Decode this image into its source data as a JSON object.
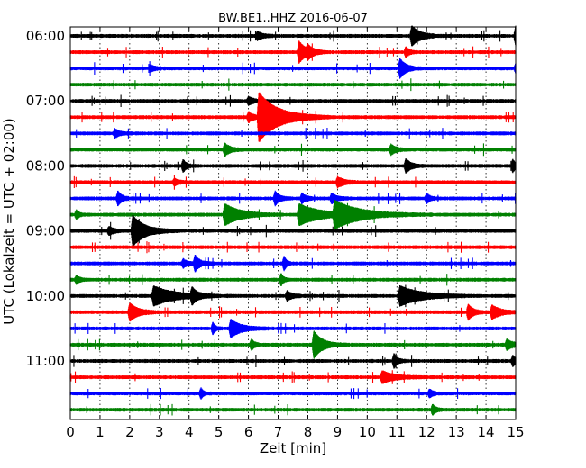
{
  "chart_data": {
    "type": "line",
    "title": "BW.BE1..HHZ 2016-06-07",
    "xlabel": "Zeit  [min]",
    "ylabel": "UTC (Lokalzeit = UTC + 02:00)",
    "xlim": [
      0,
      15
    ],
    "x_ticks": [
      "0",
      "1",
      "2",
      "3",
      "4",
      "5",
      "6",
      "7",
      "8",
      "9",
      "10",
      "11",
      "12",
      "13",
      "14",
      "15"
    ],
    "y_tick_labels": [
      "06:00",
      "07:00",
      "08:00",
      "09:00",
      "10:00",
      "11:00"
    ],
    "grid": true,
    "trace_interval_minutes": 15,
    "color_cycle": [
      "#000000",
      "#ff0000",
      "#0000ff",
      "#008000"
    ],
    "traces": [
      {
        "start": "06:00",
        "color": "#000000",
        "events": [
          [
            6.3,
            0.3,
            4
          ],
          [
            11.5,
            0.5,
            10
          ],
          [
            15,
            0.6,
            10
          ]
        ]
      },
      {
        "start": "06:15",
        "color": "#ff0000",
        "events": [
          [
            7.7,
            0.45,
            11
          ],
          [
            8.0,
            0.25,
            5
          ],
          [
            11.3,
            0.2,
            5
          ]
        ]
      },
      {
        "start": "06:30",
        "color": "#0000ff",
        "events": [
          [
            2.7,
            0.3,
            3
          ],
          [
            11.1,
            0.35,
            10
          ],
          [
            15,
            0.2,
            4
          ]
        ]
      },
      {
        "start": "06:45",
        "color": "#008000",
        "events": []
      },
      {
        "start": "07:00",
        "color": "#000000",
        "events": [
          [
            6.0,
            0.3,
            4
          ]
        ]
      },
      {
        "start": "07:15",
        "color": "#ff0000",
        "events": [
          [
            6.35,
            1.1,
            26
          ],
          [
            6.0,
            0.3,
            5
          ]
        ]
      },
      {
        "start": "07:30",
        "color": "#0000ff",
        "events": [
          [
            1.5,
            0.3,
            4
          ]
        ]
      },
      {
        "start": "07:45",
        "color": "#008000",
        "events": [
          [
            5.2,
            0.35,
            6
          ],
          [
            10.8,
            0.3,
            5
          ]
        ]
      },
      {
        "start": "08:00",
        "color": "#000000",
        "events": [
          [
            3.8,
            0.2,
            6
          ],
          [
            11.3,
            0.3,
            7
          ],
          [
            14.9,
            0.2,
            6
          ]
        ]
      },
      {
        "start": "08:15",
        "color": "#ff0000",
        "events": [
          [
            9.0,
            0.4,
            5
          ],
          [
            3.5,
            0.3,
            3
          ]
        ]
      },
      {
        "start": "08:30",
        "color": "#0000ff",
        "events": [
          [
            1.6,
            0.25,
            7
          ],
          [
            6.9,
            0.25,
            7
          ],
          [
            7.8,
            0.25,
            5
          ],
          [
            8.8,
            0.3,
            5
          ],
          [
            12.0,
            0.2,
            5
          ]
        ]
      },
      {
        "start": "08:45",
        "color": "#008000",
        "events": [
          [
            5.2,
            0.9,
            11
          ],
          [
            7.7,
            1.2,
            11
          ],
          [
            8.9,
            1.5,
            13
          ],
          [
            0.2,
            0.2,
            4
          ]
        ]
      },
      {
        "start": "09:00",
        "color": "#000000",
        "events": [
          [
            2.1,
            0.7,
            16
          ],
          [
            1.3,
            0.3,
            4
          ]
        ]
      },
      {
        "start": "09:15",
        "color": "#ff0000",
        "events": []
      },
      {
        "start": "09:30",
        "color": "#0000ff",
        "events": [
          [
            4.2,
            0.3,
            8
          ],
          [
            7.2,
            0.15,
            7
          ],
          [
            3.8,
            0.25,
            4
          ]
        ]
      },
      {
        "start": "09:45",
        "color": "#008000",
        "events": [
          [
            0.2,
            0.2,
            4
          ],
          [
            7.1,
            0.15,
            6
          ]
        ]
      },
      {
        "start": "10:00",
        "color": "#000000",
        "events": [
          [
            2.8,
            1.2,
            10
          ],
          [
            4.1,
            0.3,
            8
          ],
          [
            11.1,
            1.2,
            10
          ],
          [
            7.3,
            0.3,
            5
          ]
        ]
      },
      {
        "start": "10:15",
        "color": "#ff0000",
        "events": [
          [
            2.0,
            0.5,
            9
          ],
          [
            13.4,
            0.3,
            8
          ],
          [
            14.2,
            0.5,
            7
          ]
        ]
      },
      {
        "start": "10:30",
        "color": "#0000ff",
        "events": [
          [
            5.4,
            0.6,
            9
          ],
          [
            4.8,
            0.15,
            6
          ]
        ]
      },
      {
        "start": "10:45",
        "color": "#008000",
        "events": [
          [
            8.2,
            0.5,
            14
          ],
          [
            14.7,
            0.4,
            5
          ],
          [
            6.1,
            0.2,
            5
          ]
        ]
      },
      {
        "start": "11:00",
        "color": "#000000",
        "events": [
          [
            10.9,
            0.2,
            7
          ],
          [
            14.9,
            0.2,
            5
          ]
        ]
      },
      {
        "start": "11:15",
        "color": "#ff0000",
        "events": [
          [
            10.5,
            0.7,
            6
          ]
        ]
      },
      {
        "start": "11:30",
        "color": "#0000ff",
        "events": [
          [
            4.4,
            0.15,
            5
          ],
          [
            12.1,
            0.2,
            4
          ]
        ]
      },
      {
        "start": "11:45",
        "color": "#008000",
        "events": [
          [
            12.2,
            0.2,
            5
          ]
        ]
      }
    ]
  }
}
